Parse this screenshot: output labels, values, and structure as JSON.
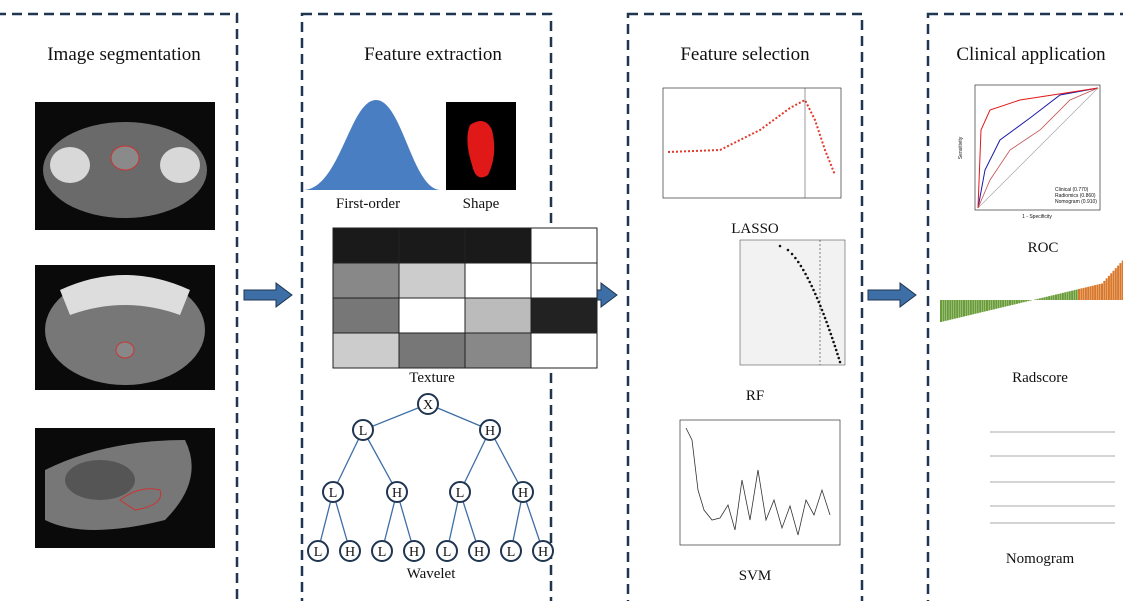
{
  "panels": [
    {
      "title": "Image segmentation"
    },
    {
      "title": "Feature extraction",
      "labels": [
        "First-order",
        "Shape",
        "Texture",
        "Wavelet"
      ]
    },
    {
      "title": "Feature selection",
      "labels": [
        "LASSO",
        "RF",
        "SVM"
      ]
    },
    {
      "title": "Clinical application",
      "labels": [
        "ROC",
        "Radscore",
        "Nomogram"
      ]
    }
  ],
  "tree": {
    "nodes": [
      "X",
      "L",
      "H",
      "L",
      "H",
      "L",
      "H",
      "L",
      "H",
      "L",
      "H",
      "L",
      "H",
      "L",
      "H"
    ]
  },
  "roc": {
    "x_label": "1 - Specificity",
    "y_label": "Sensitivity",
    "legend": [
      "Clinical (0.770)",
      "Radiomics (0.860)",
      "Nomogram (0.910)"
    ]
  }
}
